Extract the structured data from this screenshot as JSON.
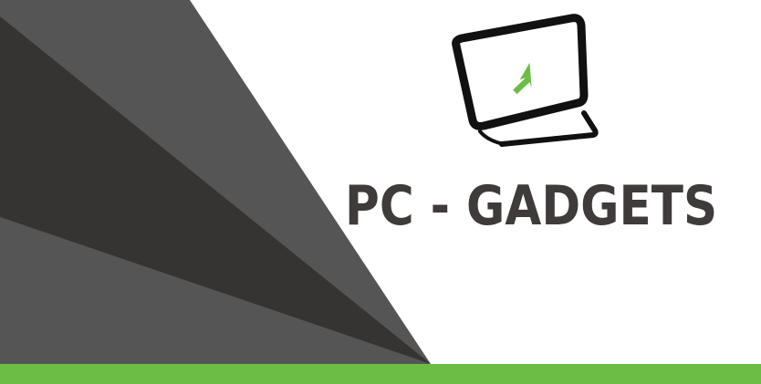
{
  "brand": {
    "name": "PC - GADGETS",
    "logo_icon": "monitor-cursor-icon"
  },
  "colors": {
    "text_dark": "#3f3b3b",
    "accent_green": "#6cbd45",
    "shape_dark": "#363432",
    "shape_mid": "#555555",
    "background": "#ffffff"
  }
}
